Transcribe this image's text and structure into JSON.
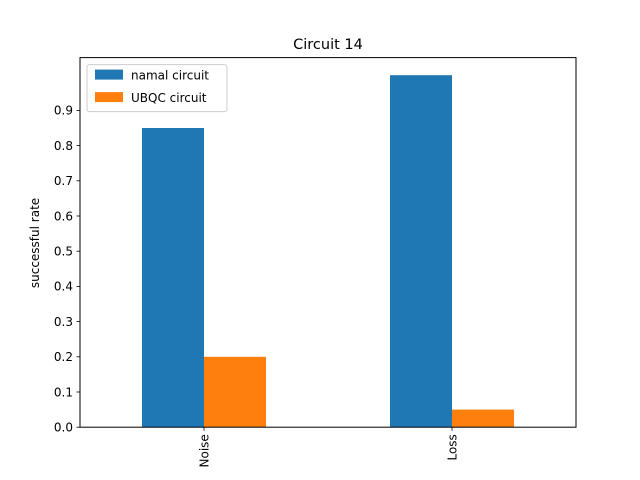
{
  "chart_data": {
    "type": "bar",
    "title": "Circuit 14",
    "xlabel": "",
    "ylabel": "successful rate",
    "categories": [
      "Noise",
      "Loss"
    ],
    "series": [
      {
        "name": "namal circuit",
        "values": [
          0.85,
          1.0
        ],
        "color": "#1f77b4"
      },
      {
        "name": "UBQC circuit",
        "values": [
          0.2,
          0.05
        ],
        "color": "#ff7f0e"
      }
    ],
    "ylim": [
      0,
      1.05
    ],
    "yticks": [
      "0.0",
      "0.1",
      "0.2",
      "0.3",
      "0.4",
      "0.5",
      "0.6",
      "0.7",
      "0.8",
      "0.9"
    ],
    "legend_position": "top-left",
    "grid": false
  }
}
